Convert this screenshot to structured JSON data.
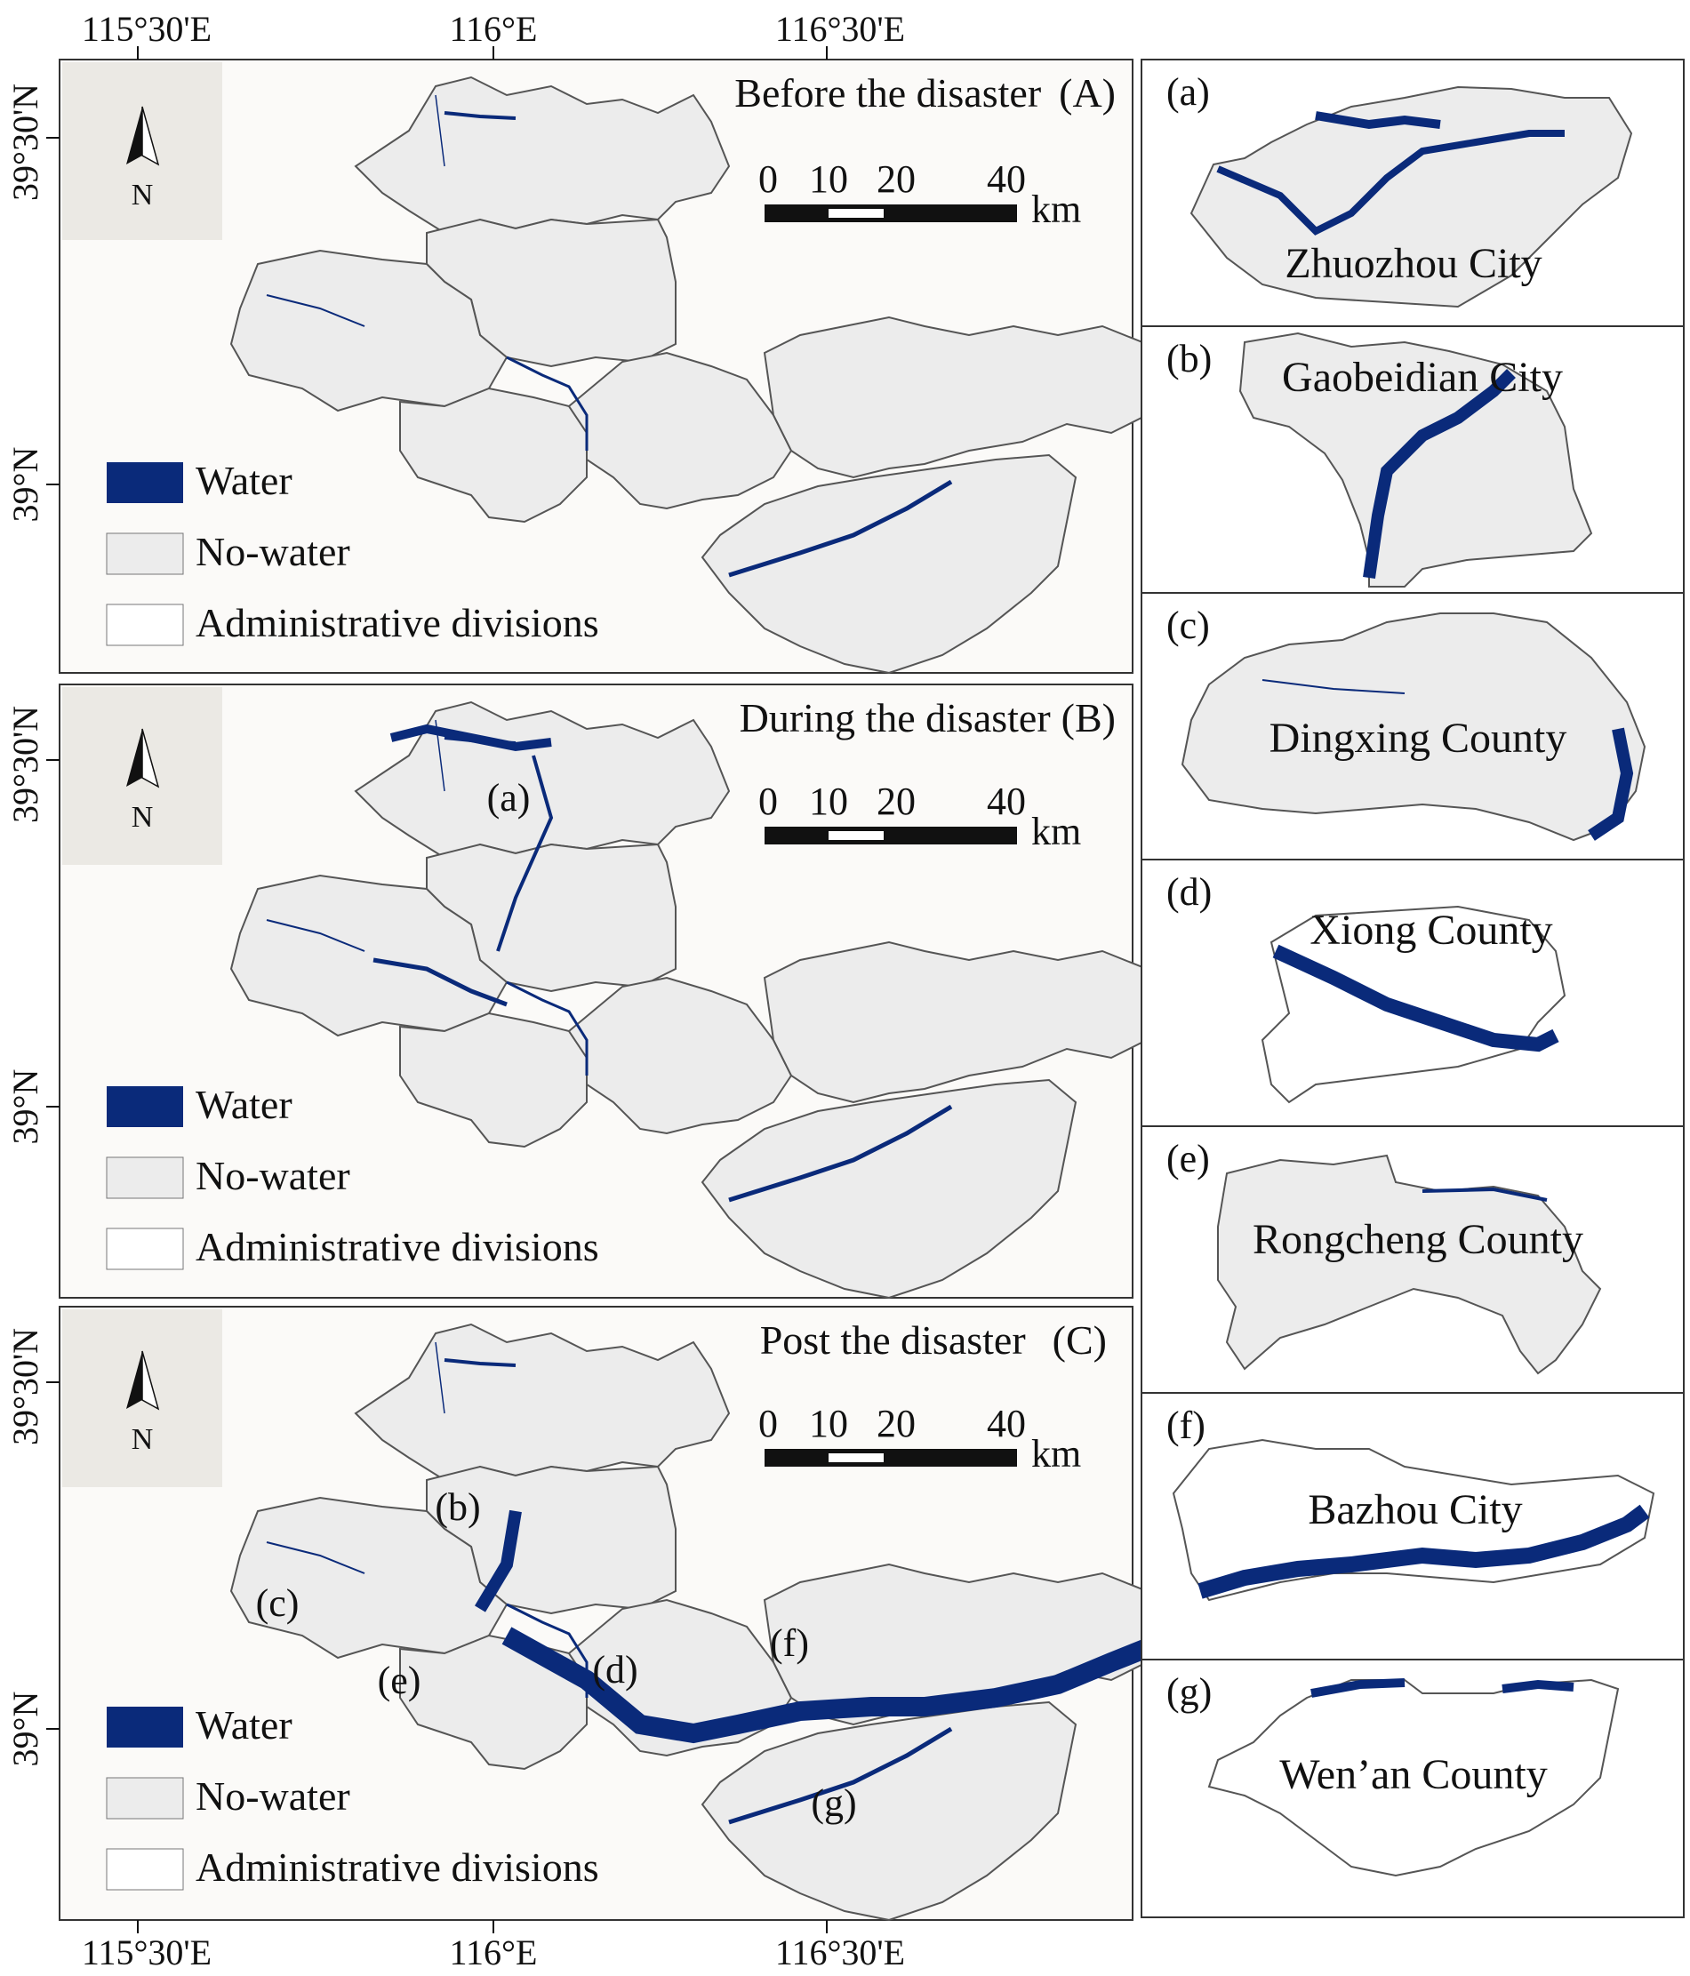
{
  "colors": {
    "water": "#0a2a7a",
    "land": "#ececec",
    "border": "#555555",
    "frame": "#333333",
    "background": "#fbfaf8"
  },
  "coordinates": {
    "top_ticks": [
      "115°30'E",
      "116°E",
      "116°30'E"
    ],
    "bottom_ticks": [
      "115°30'E",
      "116°E",
      "116°30'E"
    ],
    "left_ticks": [
      "39°30'N",
      "39°N"
    ]
  },
  "panels": [
    {
      "id": "A",
      "title": "Before the disaster",
      "letter": "(A)",
      "labels": []
    },
    {
      "id": "B",
      "title": "During the disaster",
      "letter": "(B)",
      "labels": [
        "(a)"
      ]
    },
    {
      "id": "C",
      "title": "Post the disaster",
      "letter": "(C)",
      "labels": [
        "(b)",
        "(c)",
        "(d)",
        "(e)",
        "(f)",
        "(g)"
      ]
    }
  ],
  "north_arrow": {
    "label": "N"
  },
  "scale_bar": {
    "ticks": [
      "0",
      "10",
      "20",
      "40"
    ],
    "unit": "km"
  },
  "legend": {
    "water": "Water",
    "no_water": "No-water",
    "admin": "Administrative divisions"
  },
  "insets": [
    {
      "letter": "(a)",
      "name": "Zhuozhou City"
    },
    {
      "letter": "(b)",
      "name": "Gaobeidian City"
    },
    {
      "letter": "(c)",
      "name": "Dingxing County"
    },
    {
      "letter": "(d)",
      "name": "Xiong County"
    },
    {
      "letter": "(e)",
      "name": "Rongcheng County"
    },
    {
      "letter": "(f)",
      "name": "Bazhou City"
    },
    {
      "letter": "(g)",
      "name": "Wen’an County"
    }
  ]
}
